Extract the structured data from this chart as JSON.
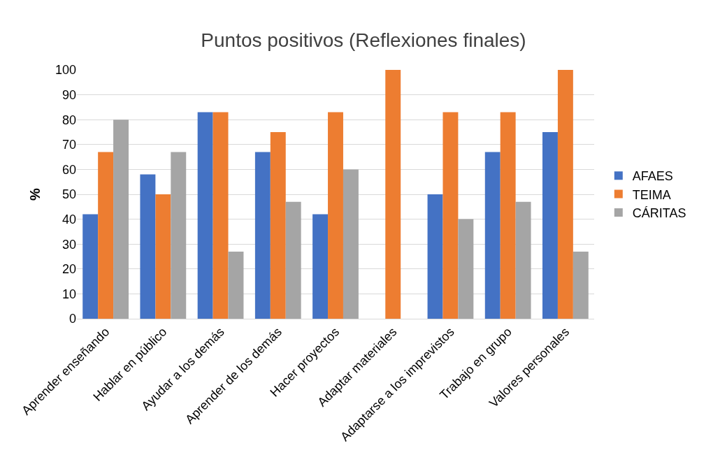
{
  "chart_data": {
    "type": "bar",
    "title": "Puntos positivos (Reflexiones finales)",
    "ylabel": "%",
    "categories": [
      "Aprender enseñando",
      "Hablar en público",
      "Ayudar a los demás",
      "Aprender de los demás",
      "Hacer proyectos",
      "Adaptar materiales",
      "Adaptarse a los imprevistos",
      "Trabajo en grupo",
      "Valores personales"
    ],
    "series": [
      {
        "name": "AFAES",
        "color": "#4472c4",
        "values": [
          42,
          58,
          83,
          67,
          42,
          0,
          50,
          67,
          75
        ]
      },
      {
        "name": "TEIMA",
        "color": "#ed7d31",
        "values": [
          67,
          50,
          83,
          75,
          83,
          100,
          83,
          83,
          100
        ]
      },
      {
        "name": "CÁRITAS",
        "color": "#a5a5a5",
        "values": [
          80,
          67,
          27,
          47,
          60,
          0,
          40,
          47,
          27
        ]
      }
    ],
    "ylim": [
      0,
      100
    ],
    "yticks": [
      0,
      10,
      20,
      30,
      40,
      50,
      60,
      70,
      80,
      90,
      100
    ],
    "grid": "y",
    "legend": "right"
  }
}
